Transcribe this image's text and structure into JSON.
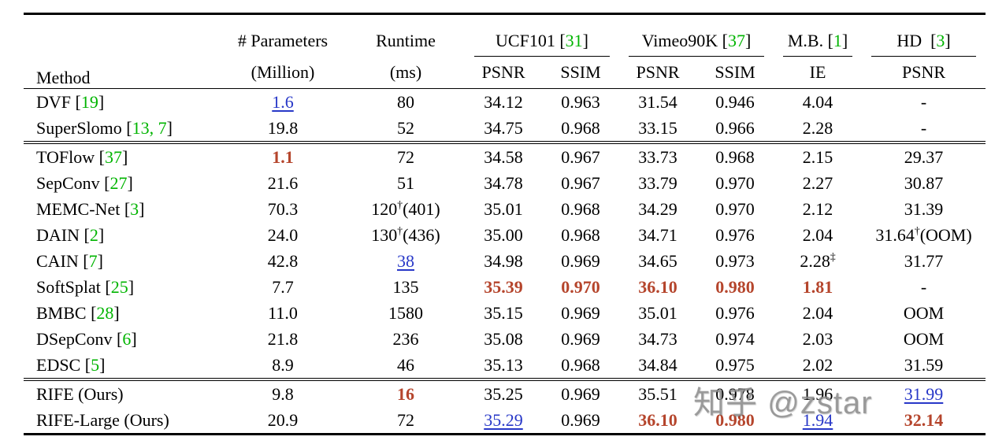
{
  "colors": {
    "citation_green": "#00b400",
    "best_value_red": "#b5452c",
    "second_best_blue": "#2838c8",
    "text": "#000000",
    "watermark_gray": "#8c8c8c",
    "background": "#ffffff"
  },
  "header": {
    "method": "Method",
    "params_line1": "# Parameters",
    "params_line2": "(Million)",
    "runtime_line1": "Runtime",
    "runtime_line2": "(ms)",
    "groups": [
      {
        "name": "UCF101",
        "cite": "31",
        "subs": [
          "PSNR",
          "SSIM"
        ]
      },
      {
        "name": "Vimeo90K",
        "cite": "37",
        "subs": [
          "PSNR",
          "SSIM"
        ]
      },
      {
        "name": "M.B.",
        "cite": "1",
        "subs": [
          "IE"
        ]
      },
      {
        "name": "HD",
        "cite": "3",
        "subs": [
          "PSNR"
        ]
      }
    ]
  },
  "style_legend": {
    "n": "normal",
    "br": "bold-red-best",
    "ub": "underline-blue-second-best"
  },
  "sections": [
    {
      "rows": [
        {
          "method": "DVF",
          "cite": "19",
          "cells": [
            [
              "1.6",
              "ub"
            ],
            [
              "80",
              "n"
            ],
            [
              "34.12",
              "n"
            ],
            [
              "0.963",
              "n"
            ],
            [
              "31.54",
              "n"
            ],
            [
              "0.946",
              "n"
            ],
            [
              "4.04",
              "n"
            ],
            [
              "-",
              "n"
            ]
          ]
        },
        {
          "method": "SuperSlomo",
          "cite": "13, 7",
          "cells": [
            [
              "19.8",
              "n"
            ],
            [
              "52",
              "n"
            ],
            [
              "34.75",
              "n"
            ],
            [
              "0.968",
              "n"
            ],
            [
              "33.15",
              "n"
            ],
            [
              "0.966",
              "n"
            ],
            [
              "2.28",
              "n"
            ],
            [
              "-",
              "n"
            ]
          ]
        }
      ]
    },
    {
      "rows": [
        {
          "method": "TOFlow",
          "cite": "37",
          "cells": [
            [
              "1.1",
              "br"
            ],
            [
              "72",
              "n"
            ],
            [
              "34.58",
              "n"
            ],
            [
              "0.967",
              "n"
            ],
            [
              "33.73",
              "n"
            ],
            [
              "0.968",
              "n"
            ],
            [
              "2.15",
              "n"
            ],
            [
              "29.37",
              "n"
            ]
          ]
        },
        {
          "method": "SepConv",
          "cite": "27",
          "cells": [
            [
              "21.6",
              "n"
            ],
            [
              "51",
              "n"
            ],
            [
              "34.78",
              "n"
            ],
            [
              "0.967",
              "n"
            ],
            [
              "33.79",
              "n"
            ],
            [
              "0.970",
              "n"
            ],
            [
              "2.27",
              "n"
            ],
            [
              "30.87",
              "n"
            ]
          ]
        },
        {
          "method": "MEMC-Net",
          "cite": "3",
          "cells": [
            [
              "70.3",
              "n"
            ],
            [
              "120†(401)",
              "n"
            ],
            [
              "35.01",
              "n"
            ],
            [
              "0.968",
              "n"
            ],
            [
              "34.29",
              "n"
            ],
            [
              "0.970",
              "n"
            ],
            [
              "2.12",
              "n"
            ],
            [
              "31.39",
              "n"
            ]
          ]
        },
        {
          "method": "DAIN",
          "cite": "2",
          "cells": [
            [
              "24.0",
              "n"
            ],
            [
              "130†(436)",
              "n"
            ],
            [
              "35.00",
              "n"
            ],
            [
              "0.968",
              "n"
            ],
            [
              "34.71",
              "n"
            ],
            [
              "0.976",
              "n"
            ],
            [
              "2.04",
              "n"
            ],
            [
              "31.64†(OOM)",
              "n"
            ]
          ]
        },
        {
          "method": "CAIN",
          "cite": "7",
          "cells": [
            [
              "42.8",
              "n"
            ],
            [
              "38",
              "ub"
            ],
            [
              "34.98",
              "n"
            ],
            [
              "0.969",
              "n"
            ],
            [
              "34.65",
              "n"
            ],
            [
              "0.973",
              "n"
            ],
            [
              "2.28‡",
              "n"
            ],
            [
              "31.77",
              "n"
            ]
          ]
        },
        {
          "method": "SoftSplat",
          "cite": "25",
          "cells": [
            [
              "7.7",
              "n"
            ],
            [
              "135",
              "n"
            ],
            [
              "35.39",
              "br"
            ],
            [
              "0.970",
              "br"
            ],
            [
              "36.10",
              "br"
            ],
            [
              "0.980",
              "br"
            ],
            [
              "1.81",
              "br"
            ],
            [
              "-",
              "n"
            ]
          ]
        },
        {
          "method": "BMBC",
          "cite": "28",
          "cells": [
            [
              "11.0",
              "n"
            ],
            [
              "1580",
              "n"
            ],
            [
              "35.15",
              "n"
            ],
            [
              "0.969",
              "n"
            ],
            [
              "35.01",
              "n"
            ],
            [
              "0.976",
              "n"
            ],
            [
              "2.04",
              "n"
            ],
            [
              "OOM",
              "n"
            ]
          ]
        },
        {
          "method": "DSepConv",
          "cite": "6",
          "cells": [
            [
              "21.8",
              "n"
            ],
            [
              "236",
              "n"
            ],
            [
              "35.08",
              "n"
            ],
            [
              "0.969",
              "n"
            ],
            [
              "34.73",
              "n"
            ],
            [
              "0.974",
              "n"
            ],
            [
              "2.03",
              "n"
            ],
            [
              "OOM",
              "n"
            ]
          ]
        },
        {
          "method": "EDSC",
          "cite": "5",
          "cells": [
            [
              "8.9",
              "n"
            ],
            [
              "46",
              "n"
            ],
            [
              "35.13",
              "n"
            ],
            [
              "0.968",
              "n"
            ],
            [
              "34.84",
              "n"
            ],
            [
              "0.975",
              "n"
            ],
            [
              "2.02",
              "n"
            ],
            [
              "31.59",
              "n"
            ]
          ]
        }
      ]
    },
    {
      "rows": [
        {
          "method": "RIFE (Ours)",
          "cite": "",
          "cells": [
            [
              "9.8",
              "n"
            ],
            [
              "16",
              "br"
            ],
            [
              "35.25",
              "n"
            ],
            [
              "0.969",
              "n"
            ],
            [
              "35.51",
              "n"
            ],
            [
              "0.978",
              "n"
            ],
            [
              "1.96",
              "n"
            ],
            [
              "31.99",
              "ub"
            ]
          ]
        },
        {
          "method": "RIFE-Large (Ours)",
          "cite": "",
          "cells": [
            [
              "20.9",
              "n"
            ],
            [
              "72",
              "n"
            ],
            [
              "35.29",
              "ub"
            ],
            [
              "0.969",
              "n"
            ],
            [
              "36.10",
              "br"
            ],
            [
              "0.980",
              "br"
            ],
            [
              "1.94",
              "ub"
            ],
            [
              "32.14",
              "br"
            ]
          ]
        }
      ]
    }
  ],
  "watermark": "知乎 @zstar"
}
